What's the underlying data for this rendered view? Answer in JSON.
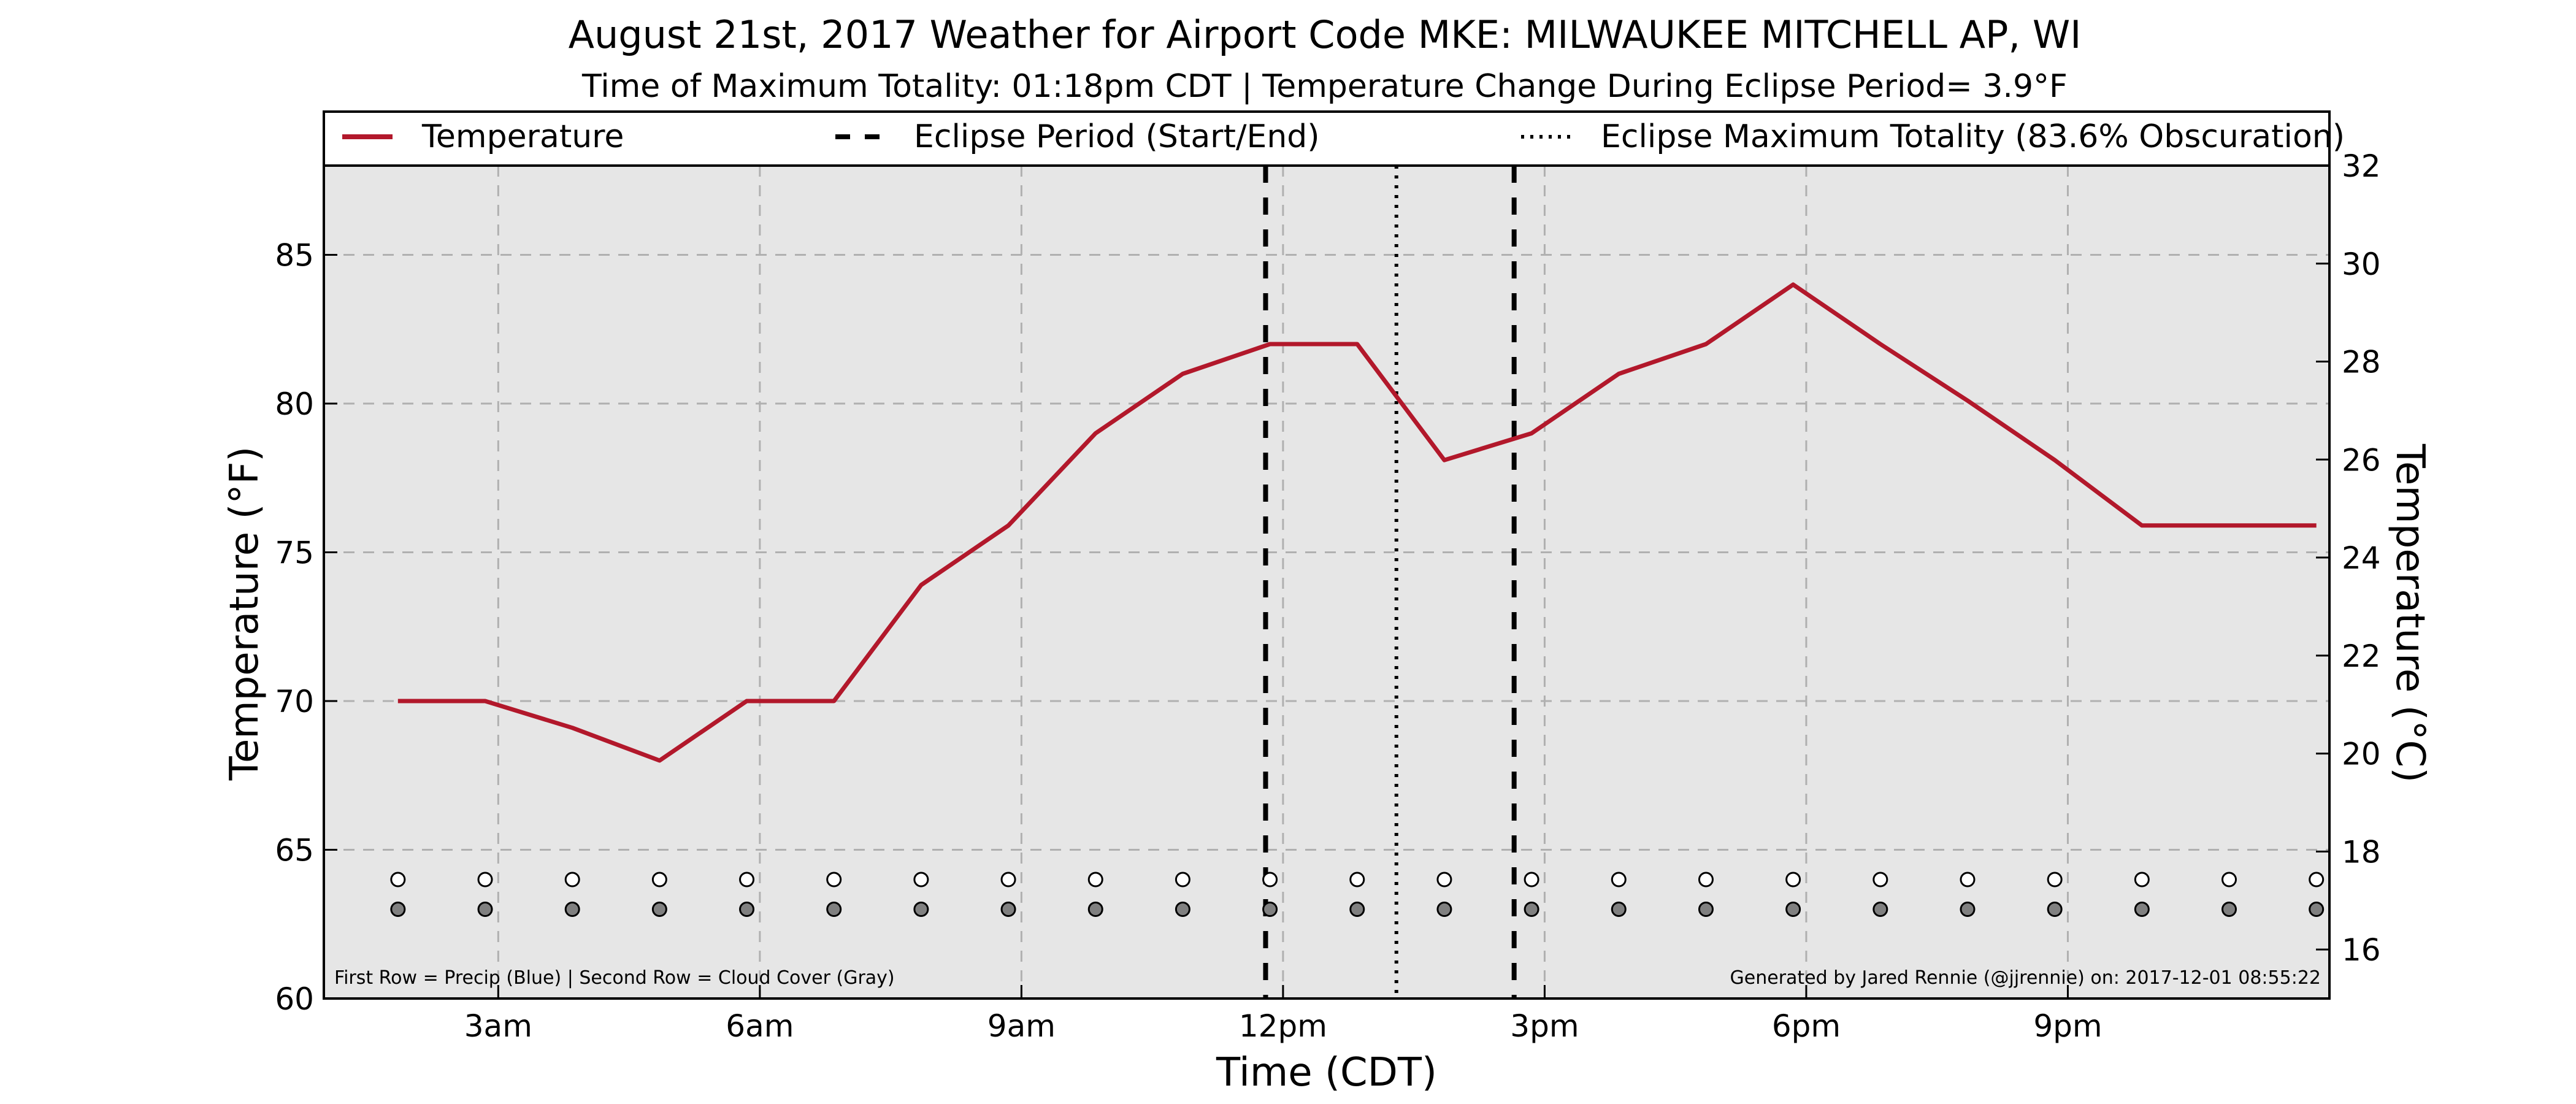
{
  "chart_data": {
    "type": "line",
    "title": "August 21st, 2017 Weather for Airport Code MKE: MILWAUKEE MITCHELL AP, WI",
    "subtitle": "Time of Maximum Totality: 01:18pm CDT | Temperature Change During Eclipse Period= 3.9°F",
    "xlabel": "Time (CDT)",
    "ylabel_left": "Temperature (°F)",
    "ylabel_right": "Temperature (°C)",
    "x_unit": "hour of day (CDT)",
    "xlim": [
      1,
      24
    ],
    "ylim": [
      60,
      88
    ],
    "ylim_right": [
      15,
      32
    ],
    "x_ticks": [
      {
        "x": 3,
        "label": "3am"
      },
      {
        "x": 6,
        "label": "6am"
      },
      {
        "x": 9,
        "label": "9am"
      },
      {
        "x": 12,
        "label": "12pm"
      },
      {
        "x": 15,
        "label": "3pm"
      },
      {
        "x": 18,
        "label": "6pm"
      },
      {
        "x": 21,
        "label": "9pm"
      }
    ],
    "y_ticks_left": [
      "60",
      "65",
      "70",
      "75",
      "80",
      "85"
    ],
    "y_ticks_right": [
      "16",
      "18",
      "20",
      "22",
      "24",
      "26",
      "28",
      "30",
      "32"
    ],
    "grid": true,
    "legend_position": "top",
    "legend": [
      {
        "label": "Temperature",
        "style": "solid",
        "color": "#b2182b"
      },
      {
        "label": "Eclipse Period (Start/End)",
        "style": "dashed",
        "color": "#000000"
      },
      {
        "label": "Eclipse Maximum Totality (83.6% Obscuration)",
        "style": "dotted",
        "color": "#000000"
      }
    ],
    "series": [
      {
        "name": "Temperature",
        "color": "#b2182b",
        "x": [
          1.85,
          2.85,
          3.85,
          4.85,
          5.85,
          6.85,
          7.85,
          8.85,
          9.85,
          10.85,
          11.85,
          12.85,
          13.85,
          14.85,
          15.85,
          16.85,
          17.85,
          18.85,
          19.85,
          20.85,
          21.85,
          22.85,
          23.85
        ],
        "y": [
          70,
          70,
          69.1,
          68,
          70,
          70,
          73.9,
          75.9,
          79,
          81,
          82,
          82,
          78.1,
          79,
          81,
          82,
          84,
          82,
          80.1,
          78.1,
          75.9,
          75.9,
          75.9
        ]
      }
    ],
    "eclipse_lines": [
      {
        "x": 11.8,
        "style": "dashed",
        "role": "start"
      },
      {
        "x": 13.3,
        "style": "dotted",
        "role": "maximum"
      },
      {
        "x": 14.65,
        "style": "dashed",
        "role": "end"
      }
    ],
    "indicator_rows": {
      "x": [
        1.85,
        2.85,
        3.85,
        4.85,
        5.85,
        6.85,
        7.85,
        8.85,
        9.85,
        10.85,
        11.85,
        12.85,
        13.85,
        14.85,
        15.85,
        16.85,
        17.85,
        18.85,
        19.85,
        20.85,
        21.85,
        22.85,
        23.85
      ],
      "precip_y": 64,
      "cloud_y": 63,
      "precip_fill": "#ffffff",
      "cloud_fill": "#808080"
    },
    "footnote_left": "First Row = Precip (Blue) | Second Row = Cloud Cover (Gray)",
    "footnote_right": "Generated by Jared Rennie (@jjrennie) on: 2017-12-01 08:55:22",
    "colors": {
      "plot_background": "#e6e6e6",
      "grid": "#b0b0b0",
      "temperature": "#b2182b"
    }
  }
}
